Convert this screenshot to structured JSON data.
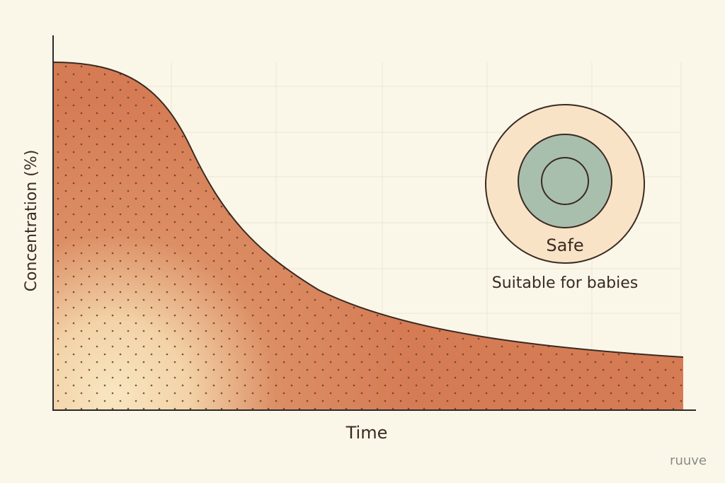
{
  "axes": {
    "x_label": "Time",
    "y_label": "Concentration (%)"
  },
  "badge": {
    "label": "Safe",
    "caption": "Suitable for babies"
  },
  "watermark": "ruuve"
}
